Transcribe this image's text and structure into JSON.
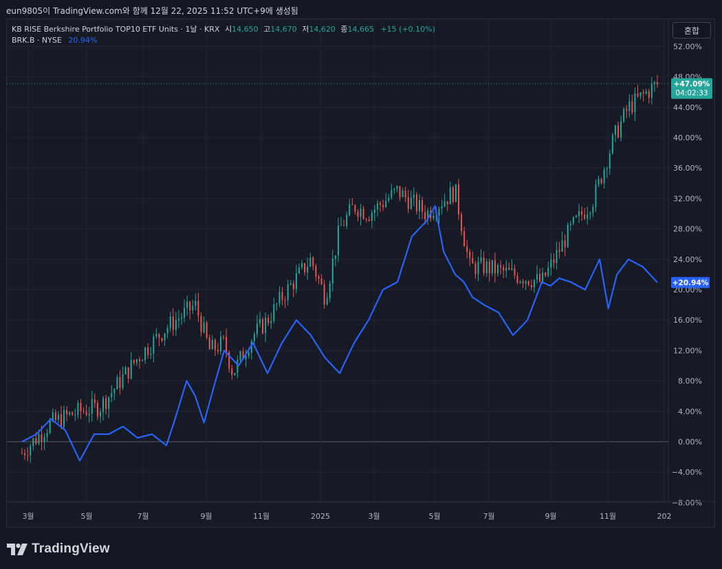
{
  "caption": "eun9805이 TradingView.com와 함께 12월 22, 2025 11:52 UTC+9에 생성됨",
  "legend": {
    "main_name": "KB RISE Berkshire Portfolio TOP10 ETF Units · 1날 · KRX",
    "open_label": "시",
    "open_value": "14,650",
    "high_label": "고",
    "high_value": "14,670",
    "low_label": "저",
    "low_value": "14,620",
    "close_label": "종",
    "close_value": "14,665",
    "change": "+15 (+0.10%)",
    "compare_name": "BRK.B · NYSE",
    "compare_value": "20.94%"
  },
  "mode_button": "혼합",
  "badges": {
    "main_value": "+47.09%",
    "main_time": "04:02:33",
    "compare_value": "+20.94%"
  },
  "footer": {
    "logo_text": "TradingView",
    "logo_icon": "tradingview-logo-icon"
  },
  "colors": {
    "background": "#161a25",
    "grid": "#232733",
    "up": "#26a69a",
    "down": "#ef5350",
    "compare_line": "#2962ff",
    "zero_line": "#5d606b"
  },
  "chart_data": {
    "type": "line",
    "x_ticks": [
      "3월",
      "5월",
      "7월",
      "9월",
      "11월",
      "2025",
      "3월",
      "5월",
      "7월",
      "9월",
      "11월",
      "202"
    ],
    "y_ticks": [
      "52.00%",
      "48.00%",
      "44.00%",
      "40.00%",
      "36.00%",
      "32.00%",
      "28.00%",
      "24.00%",
      "20.00%",
      "16.00%",
      "12.00%",
      "8.00%",
      "4.00%",
      "0.00%",
      "−4.00%",
      "−8.00%"
    ],
    "ylim": [
      -8,
      52
    ],
    "series": [
      {
        "name": "KB RISE Berkshire Portfolio TOP10 ETF Units",
        "style": "candles",
        "x": [
          0.0,
          1.0,
          2.0,
          2.7,
          3.0,
          4.0,
          5.0,
          6.0,
          6.5,
          7.0,
          7.3,
          8.0,
          8.5,
          9.0,
          10.0,
          10.5,
          11.0,
          11.5,
          12.0,
          13.0,
          14.0,
          15.0,
          15.5,
          16.0,
          17.0,
          18.0,
          19.0,
          19.8,
          20.5,
          21.0,
          22.0
        ],
        "values": [
          -1.5,
          2.5,
          4.0,
          4.6,
          6.0,
          11.0,
          15.0,
          18.0,
          12.0,
          13.0,
          9.0,
          14.0,
          16.0,
          19.0,
          24.0,
          19.0,
          28.0,
          31.0,
          30.0,
          33.0,
          30.0,
          33.0,
          23.0,
          23.0,
          22.0,
          21.0,
          28.0,
          32.0,
          40.0,
          44.0,
          47.09
        ]
      },
      {
        "name": "BRK.B",
        "style": "line",
        "x": [
          0.0,
          0.5,
          1.0,
          1.5,
          2.0,
          2.5,
          3.0,
          3.5,
          4.0,
          4.5,
          5.0,
          5.3,
          5.7,
          6.0,
          6.3,
          6.7,
          7.0,
          7.5,
          8.0,
          8.5,
          9.0,
          9.5,
          10.0,
          10.5,
          11.0,
          11.5,
          12.0,
          12.5,
          13.0,
          13.5,
          14.0,
          14.3,
          14.6,
          15.0,
          15.3,
          15.6,
          16.0,
          16.5,
          17.0,
          17.5,
          18.0,
          18.3,
          18.6,
          19.0,
          19.5,
          20.0,
          20.3,
          20.6,
          21.0,
          21.5,
          22.0
        ],
        "values": [
          0.0,
          1.0,
          3.0,
          1.5,
          -2.5,
          1.0,
          1.0,
          2.0,
          0.5,
          1.0,
          -0.5,
          3.0,
          8.0,
          6.0,
          2.5,
          8.0,
          12.0,
          10.0,
          13.0,
          9.0,
          13.0,
          16.0,
          14.0,
          11.0,
          9.0,
          13.0,
          16.0,
          20.0,
          21.0,
          27.0,
          29.0,
          31.0,
          25.0,
          22.0,
          21.0,
          19.0,
          18.0,
          17.0,
          14.0,
          16.0,
          21.0,
          20.5,
          21.5,
          21.0,
          20.0,
          24.0,
          17.5,
          22.0,
          24.0,
          23.0,
          20.94
        ]
      }
    ]
  }
}
